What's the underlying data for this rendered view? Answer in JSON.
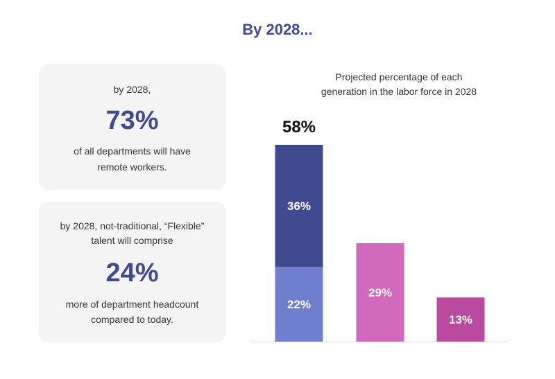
{
  "page": {
    "title": "By 2028..."
  },
  "cards": [
    {
      "intro": "by 2028,",
      "stat": "73%",
      "line1": "of all departments will have",
      "line2": "remote workers."
    },
    {
      "intro1": "by 2028, not-traditional, “Flexible”",
      "intro2": "talent will comprise",
      "stat": "24%",
      "line1": "more of department headcount",
      "line2": "compared to today."
    }
  ],
  "colors": {
    "title": "#3f4a8f",
    "bar_dark": "#3f4a8f",
    "bar_light": "#6f7fcd",
    "bar_pink": "#d068bc",
    "bar_magenta": "#b94a9f",
    "axis": "#dddddd"
  },
  "chart_data": {
    "type": "bar",
    "title_line1": "Projected percentage of each",
    "title_line2": "generation in the labor force in 2028",
    "ylim": [
      0,
      58
    ],
    "bars": [
      {
        "total_label": "58%",
        "segments": [
          {
            "value": 22,
            "label": "22%",
            "color": "#6f7fcd"
          },
          {
            "value": 36,
            "label": "36%",
            "color": "#3f4a8f"
          }
        ]
      },
      {
        "segments": [
          {
            "value": 29,
            "label": "29%",
            "color": "#d068bc"
          }
        ]
      },
      {
        "segments": [
          {
            "value": 13,
            "label": "13%",
            "color": "#b94a9f"
          }
        ]
      }
    ]
  }
}
